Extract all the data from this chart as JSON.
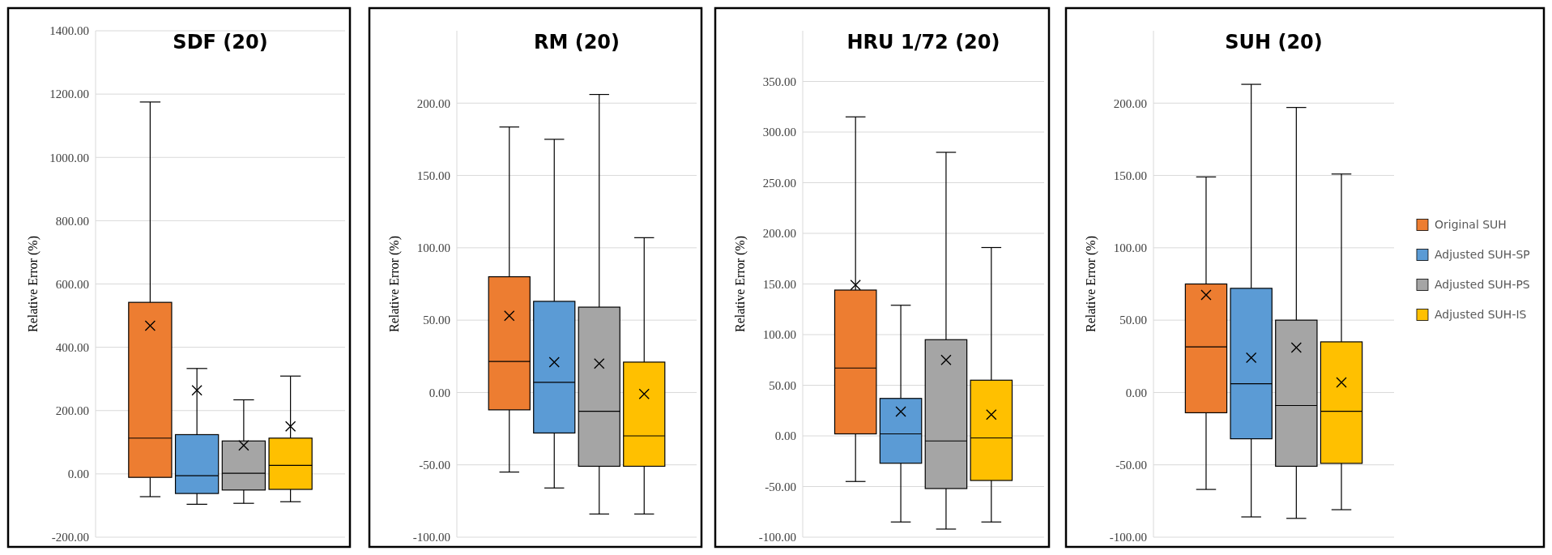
{
  "chart_data": [
    {
      "type": "box",
      "title": "SDF (20)",
      "ylabel": "Relative Error (%)",
      "categories": [
        null
      ],
      "ylim": [
        -200,
        1400
      ],
      "yticks": [
        {
          "value": -200,
          "label": "-200.00"
        },
        {
          "value": 0,
          "label": "0.00"
        },
        {
          "value": 200,
          "label": "200.00"
        },
        {
          "value": 400,
          "label": "400.00"
        },
        {
          "value": 600,
          "label": "600.00"
        },
        {
          "value": 800,
          "label": "800.00"
        },
        {
          "value": 1000,
          "label": "1000.00"
        },
        {
          "value": 1200,
          "label": "1200.00"
        },
        {
          "value": 1400,
          "label": "1400.00"
        }
      ],
      "grid": "y",
      "legend": false,
      "tick_labels": "y",
      "series": [
        {
          "color": "#ed7d31",
          "boxes": [
            {
              "low": -72,
              "q1": -11,
              "median": 113,
              "q3": 542,
              "high": 1175,
              "mean": 468
            }
          ]
        },
        {
          "color": "#5b9bd5",
          "boxes": [
            {
              "low": -96,
              "q1": -62,
              "median": -6,
              "q3": 124,
              "high": 333,
              "mean": 264
            }
          ]
        },
        {
          "color": "#a5a5a5",
          "boxes": [
            {
              "low": -93,
              "q1": -51,
              "median": 2,
              "q3": 104,
              "high": 234,
              "mean": 90
            }
          ]
        },
        {
          "color": "#ffc000",
          "boxes": [
            {
              "low": -88,
              "q1": -49,
              "median": 27,
              "q3": 113,
              "high": 309,
              "mean": 150
            }
          ]
        }
      ]
    },
    {
      "type": "box",
      "title": "RM (20)",
      "ylabel": "Relative Error (%)",
      "categories": [
        null
      ],
      "ylim": [
        -100,
        250
      ],
      "yticks": [
        {
          "value": -100,
          "label": "-100.00"
        },
        {
          "value": -50,
          "label": "-50.00"
        },
        {
          "value": 0,
          "label": "0.00"
        },
        {
          "value": 50,
          "label": "50.00"
        },
        {
          "value": 100,
          "label": "100.00"
        },
        {
          "value": 150,
          "label": "150.00"
        },
        {
          "value": 200,
          "label": "200.00"
        }
      ],
      "grid": "y",
      "legend": false,
      "tick_labels": "y",
      "series": [
        {
          "color": "#ed7d31",
          "boxes": [
            {
              "low": -55,
              "q1": -12,
              "median": 21.5,
              "q3": 80,
              "high": 183.5,
              "mean": 53
            }
          ]
        },
        {
          "color": "#5b9bd5",
          "boxes": [
            {
              "low": -66,
              "q1": -28,
              "median": 7,
              "q3": 63,
              "high": 175,
              "mean": 21
            }
          ]
        },
        {
          "color": "#a5a5a5",
          "boxes": [
            {
              "low": -84,
              "q1": -51,
              "median": -13,
              "q3": 59,
              "high": 206,
              "mean": 20
            }
          ]
        },
        {
          "color": "#ffc000",
          "boxes": [
            {
              "low": -84,
              "q1": -51,
              "median": -30,
              "q3": 21,
              "high": 107,
              "mean": -1
            }
          ]
        }
      ]
    },
    {
      "type": "box",
      "title": "HRU 1/72 (20)",
      "ylabel": "Relative Error (%)",
      "categories": [
        null
      ],
      "ylim": [
        -100,
        400
      ],
      "yticks": [
        {
          "value": -100,
          "label": "-100.00"
        },
        {
          "value": -50,
          "label": "-50.00"
        },
        {
          "value": 0,
          "label": "0.00"
        },
        {
          "value": 50,
          "label": "50.00"
        },
        {
          "value": 100,
          "label": "100.00"
        },
        {
          "value": 150,
          "label": "150.00"
        },
        {
          "value": 200,
          "label": "200.00"
        },
        {
          "value": 250,
          "label": "250.00"
        },
        {
          "value": 300,
          "label": "300.00"
        },
        {
          "value": 350,
          "label": "350.00"
        }
      ],
      "grid": "y",
      "legend": false,
      "tick_labels": "y",
      "series": [
        {
          "color": "#ed7d31",
          "boxes": [
            {
              "low": -45,
              "q1": 2,
              "median": 67,
              "q3": 144,
              "high": 315,
              "mean": 149
            }
          ]
        },
        {
          "color": "#5b9bd5",
          "boxes": [
            {
              "low": -85,
              "q1": -27,
              "median": 2,
              "q3": 37,
              "high": 129,
              "mean": 24
            }
          ]
        },
        {
          "color": "#a5a5a5",
          "boxes": [
            {
              "low": -92,
              "q1": -52,
              "median": -5,
              "q3": 95,
              "high": 280,
              "mean": 75
            }
          ]
        },
        {
          "color": "#ffc000",
          "boxes": [
            {
              "low": -85,
              "q1": -44,
              "median": -2,
              "q3": 55,
              "high": 186,
              "mean": 21
            }
          ]
        }
      ]
    },
    {
      "type": "box",
      "title": "SUH (20)",
      "ylabel": "Relative Error (%)",
      "categories": [
        null
      ],
      "ylim": [
        -100,
        250
      ],
      "yticks": [
        {
          "value": -100,
          "label": "-100.00"
        },
        {
          "value": -50,
          "label": "-50.00"
        },
        {
          "value": 0,
          "label": "0.00"
        },
        {
          "value": 50,
          "label": "50.00"
        },
        {
          "value": 100,
          "label": "100.00"
        },
        {
          "value": 150,
          "label": "150.00"
        },
        {
          "value": 200,
          "label": "200.00"
        }
      ],
      "grid": "y",
      "legend": "right",
      "tick_labels": "y",
      "series": [
        {
          "name": "Original SUH",
          "color": "#ed7d31",
          "boxes": [
            {
              "low": -67,
              "q1": -14,
              "median": 31.5,
              "q3": 75,
              "high": 149,
              "mean": 67.5
            }
          ]
        },
        {
          "name": "Adjusted SUH-SP",
          "color": "#5b9bd5",
          "boxes": [
            {
              "low": -86,
              "q1": -32,
              "median": 6,
              "q3": 72,
              "high": 213,
              "mean": 24
            }
          ]
        },
        {
          "name": "Adjusted SUH-PS",
          "color": "#a5a5a5",
          "boxes": [
            {
              "low": -87,
              "q1": -51,
              "median": -9,
              "q3": 50,
              "high": 197,
              "mean": 31
            }
          ]
        },
        {
          "name": "Adjusted SUH-IS",
          "color": "#ffc000",
          "boxes": [
            {
              "low": -81,
              "q1": -49,
              "median": -13,
              "q3": 35,
              "high": 151,
              "mean": 7
            }
          ]
        }
      ]
    }
  ]
}
